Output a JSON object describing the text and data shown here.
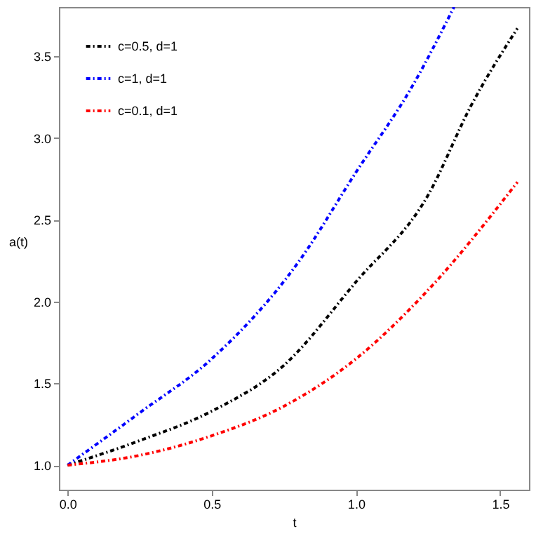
{
  "chart_data": {
    "type": "line",
    "xlabel": "t",
    "ylabel": "a(t)",
    "xlim": [
      -0.03,
      1.6
    ],
    "ylim": [
      0.85,
      3.8
    ],
    "xticks": [
      {
        "value": 0,
        "label": "0.0"
      },
      0.5,
      {
        "value": 1,
        "label": "1.0"
      },
      1.5
    ],
    "yticks": [
      {
        "value": 1,
        "label": "1.0"
      },
      1.5,
      {
        "value": 2,
        "label": "2.0"
      },
      2.5,
      {
        "value": 3,
        "label": "3.0"
      },
      3.5
    ],
    "grid": false,
    "legend": "top left",
    "line_style": "dashed",
    "marker": "none",
    "series": [
      {
        "name": "c=0.5, d=1",
        "color": "#000000",
        "x": [
          0,
          0.25,
          0.5,
          0.75,
          1.0,
          1.25,
          1.4,
          1.56
        ],
        "values": [
          1,
          1.15,
          1.33,
          1.61,
          2.12,
          2.65,
          3.2,
          3.67
        ]
      },
      {
        "name": "c=1, d=1",
        "color": "#0000ff",
        "x": [
          0,
          0.25,
          0.5,
          0.8,
          1.0,
          1.2,
          1.34
        ],
        "values": [
          1,
          1.32,
          1.65,
          2.24,
          2.79,
          3.33,
          3.8
        ]
      },
      {
        "name": "c=0.1, d=1",
        "color": "#ff0000",
        "x": [
          0,
          0.25,
          0.5,
          0.75,
          1.0,
          1.25,
          1.56
        ],
        "values": [
          1,
          1.06,
          1.18,
          1.36,
          1.65,
          2.07,
          2.73
        ]
      }
    ]
  }
}
